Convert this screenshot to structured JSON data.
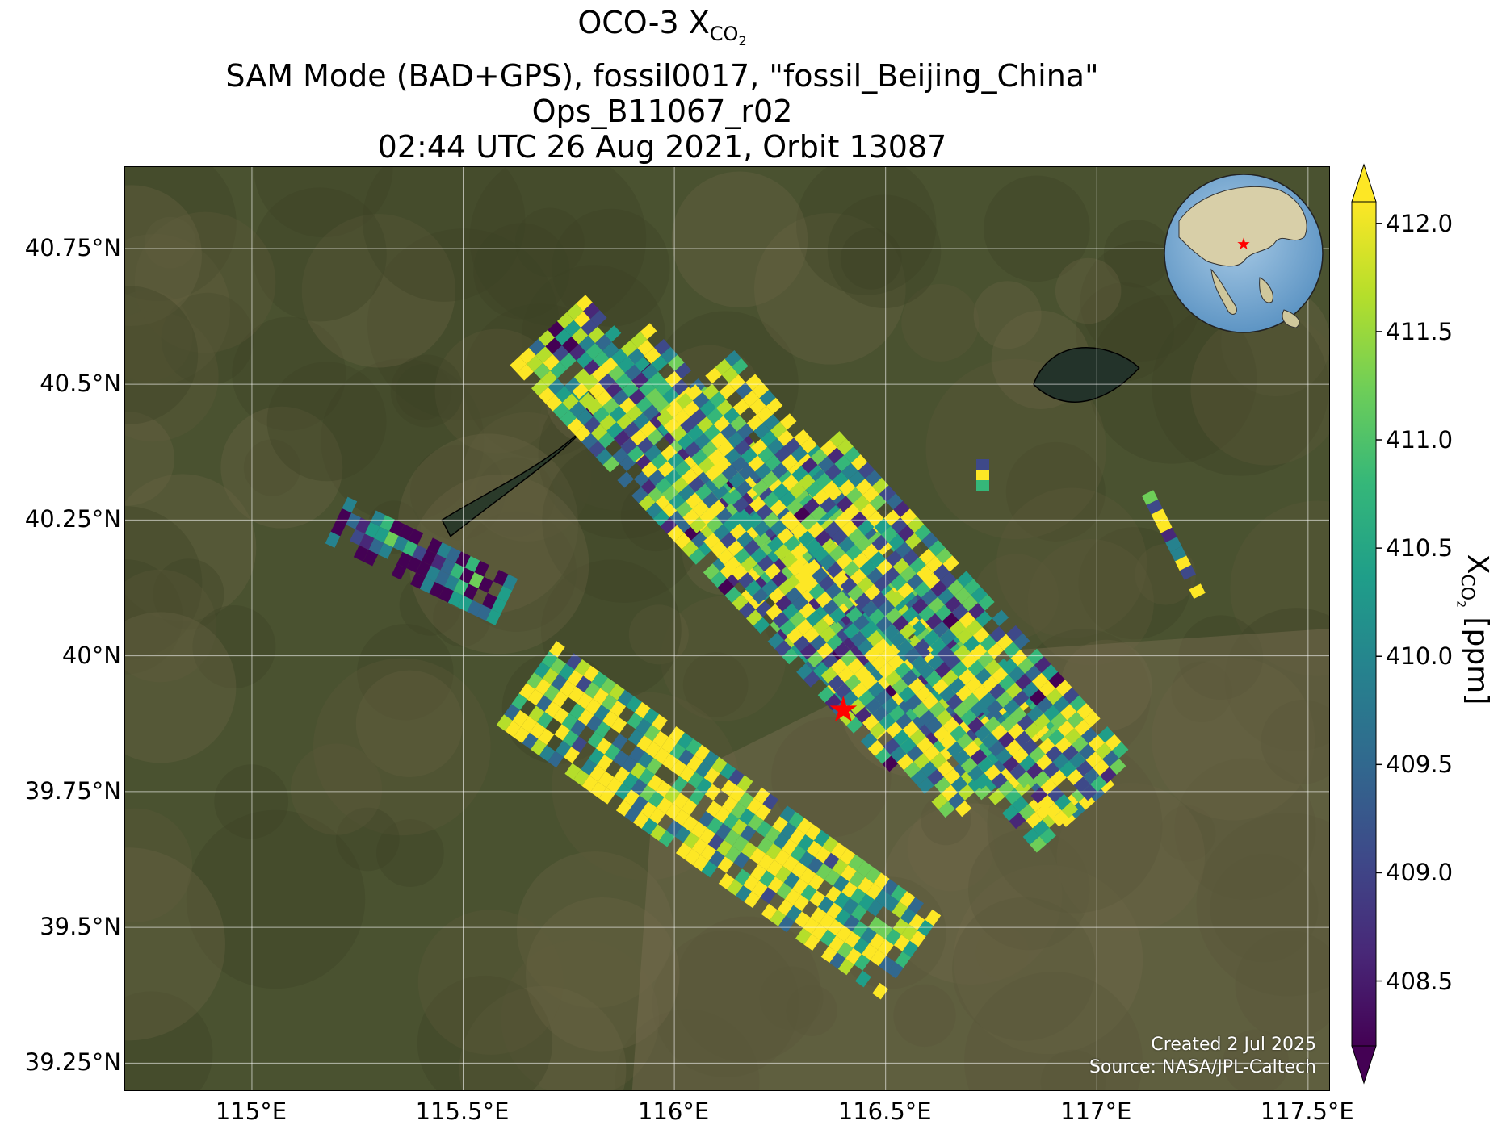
{
  "title": {
    "line1_main": "OCO-3 X",
    "line1_sub": "CO",
    "line1_sub2": "2",
    "line2": "SAM Mode (BAD+GPS), fossil0017, \"fossil_Beijing_China\"",
    "line3": "Ops_B11067_r02",
    "line4": "02:44 UTC 26 Aug 2021, Orbit 13087"
  },
  "map": {
    "lon_range": [
      114.7,
      117.55
    ],
    "lat_range": [
      39.2,
      40.9
    ],
    "lat_ticks": [
      "40.75°N",
      "40.5°N",
      "40.25°N",
      "40°N",
      "39.75°N",
      "39.5°N",
      "39.25°N"
    ],
    "lat_values": [
      40.75,
      40.5,
      40.25,
      40.0,
      39.75,
      39.5,
      39.25
    ],
    "lon_ticks": [
      "115°E",
      "115.5°E",
      "116°E",
      "116.5°E",
      "117°E",
      "117.5°E"
    ],
    "lon_values": [
      115.0,
      115.5,
      116.0,
      116.5,
      117.0,
      117.5
    ],
    "target_marker": {
      "lon": 116.4,
      "lat": 39.9,
      "color": "#ff0000",
      "icon": "star-icon"
    },
    "background_color": "#4a5230",
    "grid": true
  },
  "credits": {
    "created": "Created 2 Jul 2025",
    "source": "Source: NASA/JPL-Caltech"
  },
  "colorbar": {
    "min": 408.2,
    "max": 412.1,
    "ticks": [
      "412.0",
      "411.5",
      "411.0",
      "410.5",
      "410.0",
      "409.5",
      "409.0",
      "408.5"
    ],
    "tick_values": [
      412.0,
      411.5,
      411.0,
      410.5,
      410.0,
      409.5,
      409.0,
      408.5
    ],
    "label_main": "X",
    "label_sub": "CO",
    "label_sub2": "2",
    "label_unit": " [ppm]",
    "colormap": [
      "#440154",
      "#482878",
      "#3e4989",
      "#31688e",
      "#26828e",
      "#1f9e89",
      "#35b779",
      "#6ece58",
      "#b5de2b",
      "#fde725"
    ],
    "extend": "both"
  },
  "chart_data": {
    "type": "heatmap",
    "title": "OCO-3 XCO2 SAM Mode (BAD+GPS), fossil0017, \"fossil_Beijing_China\" Ops_B11067_r02 02:44 UTC 26 Aug 2021, Orbit 13087",
    "xlabel": "",
    "ylabel": "",
    "value_label": "XCO2 [ppm]",
    "xlim": [
      114.7,
      117.55
    ],
    "ylim": [
      39.2,
      40.9
    ],
    "clim": [
      408.2,
      412.1
    ],
    "swaths": [
      {
        "name": "swath-1",
        "lon0": 115.7,
        "lat0": 40.6,
        "lon1": 116.6,
        "lat1": 39.85,
        "mean": 410.4
      },
      {
        "name": "swath-2",
        "lon0": 115.85,
        "lat0": 40.55,
        "lon1": 116.75,
        "lat1": 39.75,
        "mean": 410.8
      },
      {
        "name": "swath-3",
        "lon0": 116.05,
        "lat0": 40.5,
        "lon1": 116.95,
        "lat1": 39.7,
        "mean": 411.0
      },
      {
        "name": "swath-4",
        "lon0": 116.3,
        "lat0": 40.35,
        "lon1": 117.0,
        "lat1": 39.75,
        "mean": 410.6
      },
      {
        "name": "swath-5",
        "lon0": 115.65,
        "lat0": 39.95,
        "lon1": 116.55,
        "lat1": 39.45,
        "mean": 411.4
      },
      {
        "name": "swath-6",
        "lon0": 115.2,
        "lat0": 40.25,
        "lon1": 115.6,
        "lat1": 40.1,
        "mean": 409.0
      },
      {
        "name": "swath-7",
        "lon0": 116.73,
        "lat0": 40.42,
        "lon1": 116.73,
        "lat1": 40.3,
        "mean": 410.3
      },
      {
        "name": "swath-8",
        "lon0": 117.12,
        "lat0": 40.3,
        "lon1": 117.25,
        "lat1": 40.1,
        "mean": 410.8
      }
    ]
  }
}
